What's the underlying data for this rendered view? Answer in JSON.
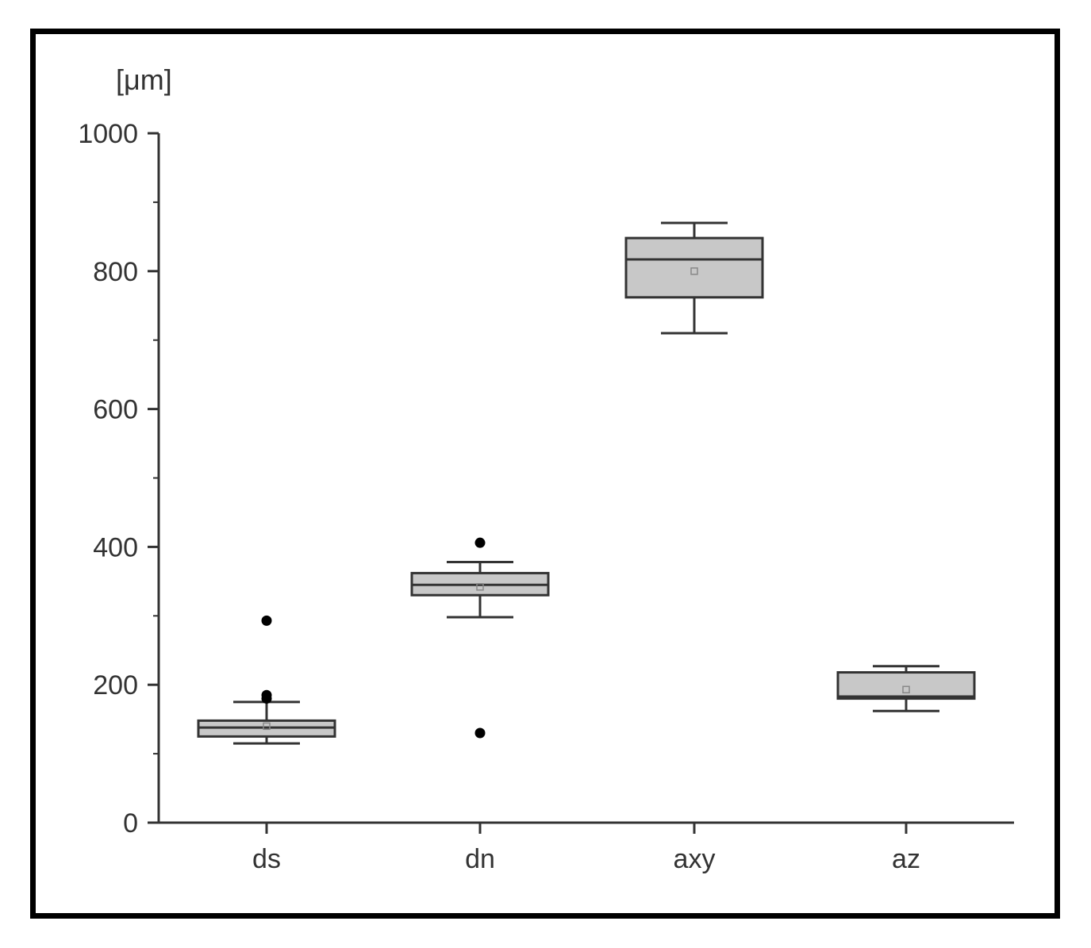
{
  "chart_data": {
    "type": "box",
    "ylabel": "[μm]",
    "ylim": [
      0,
      1000
    ],
    "yticks": [
      0,
      200,
      400,
      600,
      800,
      1000
    ],
    "yminor_step": 100,
    "categories": [
      "ds",
      "dn",
      "axy",
      "az"
    ],
    "grid": false,
    "colors": {
      "box_fill": "#c8c8c8",
      "stroke": "#333333",
      "frame": "#000000"
    },
    "boxes": [
      {
        "category": "ds",
        "whisker_low": 115,
        "q1": 125,
        "median": 138,
        "q3": 148,
        "whisker_high": 175,
        "mean": 140,
        "outliers": [
          180,
          185,
          293
        ]
      },
      {
        "category": "dn",
        "whisker_low": 298,
        "q1": 330,
        "median": 345,
        "q3": 362,
        "whisker_high": 378,
        "mean": 342,
        "outliers": [
          130,
          406
        ]
      },
      {
        "category": "axy",
        "whisker_low": 710,
        "q1": 762,
        "median": 817,
        "q3": 848,
        "whisker_high": 870,
        "mean": 800,
        "outliers": []
      },
      {
        "category": "az",
        "whisker_low": 162,
        "q1": 180,
        "median": 183,
        "q3": 218,
        "whisker_high": 227,
        "mean": 193,
        "outliers": []
      }
    ]
  }
}
